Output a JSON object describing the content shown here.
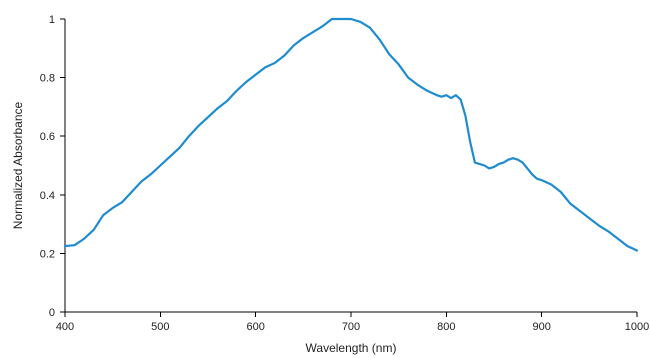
{
  "chart_data": {
    "type": "line",
    "title": "",
    "xlabel": "Wavelength (nm)",
    "ylabel": "Normalized Absorbance",
    "xlim": [
      400,
      1000
    ],
    "ylim": [
      0,
      1
    ],
    "xticks": [
      400,
      500,
      600,
      700,
      800,
      900,
      1000
    ],
    "yticks": [
      0,
      0.2,
      0.4,
      0.6,
      0.8,
      1
    ],
    "ytick_labels": [
      "0",
      "0.2",
      "0.4",
      "0.6",
      "0.8",
      "1"
    ],
    "grid": false,
    "legend": "none",
    "series": [
      {
        "color": "#1f8bd0",
        "x": [
          400,
          410,
          420,
          430,
          440,
          450,
          460,
          470,
          480,
          490,
          500,
          510,
          520,
          530,
          540,
          550,
          560,
          570,
          580,
          590,
          600,
          610,
          620,
          630,
          640,
          650,
          660,
          670,
          680,
          690,
          700,
          710,
          720,
          730,
          740,
          750,
          760,
          770,
          780,
          790,
          795,
          800,
          805,
          810,
          815,
          820,
          825,
          830,
          835,
          840,
          845,
          850,
          855,
          860,
          865,
          870,
          875,
          880,
          885,
          890,
          895,
          900,
          910,
          920,
          930,
          940,
          950,
          960,
          970,
          980,
          990,
          1000
        ],
        "y": [
          0.225,
          0.228,
          0.25,
          0.28,
          0.33,
          0.355,
          0.375,
          0.41,
          0.445,
          0.47,
          0.5,
          0.53,
          0.56,
          0.6,
          0.635,
          0.665,
          0.695,
          0.72,
          0.755,
          0.785,
          0.81,
          0.835,
          0.85,
          0.875,
          0.91,
          0.935,
          0.955,
          0.975,
          1.0,
          1.0,
          1.0,
          0.99,
          0.97,
          0.93,
          0.88,
          0.845,
          0.8,
          0.775,
          0.755,
          0.74,
          0.735,
          0.74,
          0.73,
          0.74,
          0.725,
          0.67,
          0.58,
          0.51,
          0.505,
          0.5,
          0.49,
          0.495,
          0.505,
          0.51,
          0.52,
          0.525,
          0.52,
          0.51,
          0.49,
          0.47,
          0.455,
          0.45,
          0.435,
          0.41,
          0.37,
          0.345,
          0.32,
          0.295,
          0.275,
          0.25,
          0.225,
          0.21
        ]
      }
    ]
  }
}
